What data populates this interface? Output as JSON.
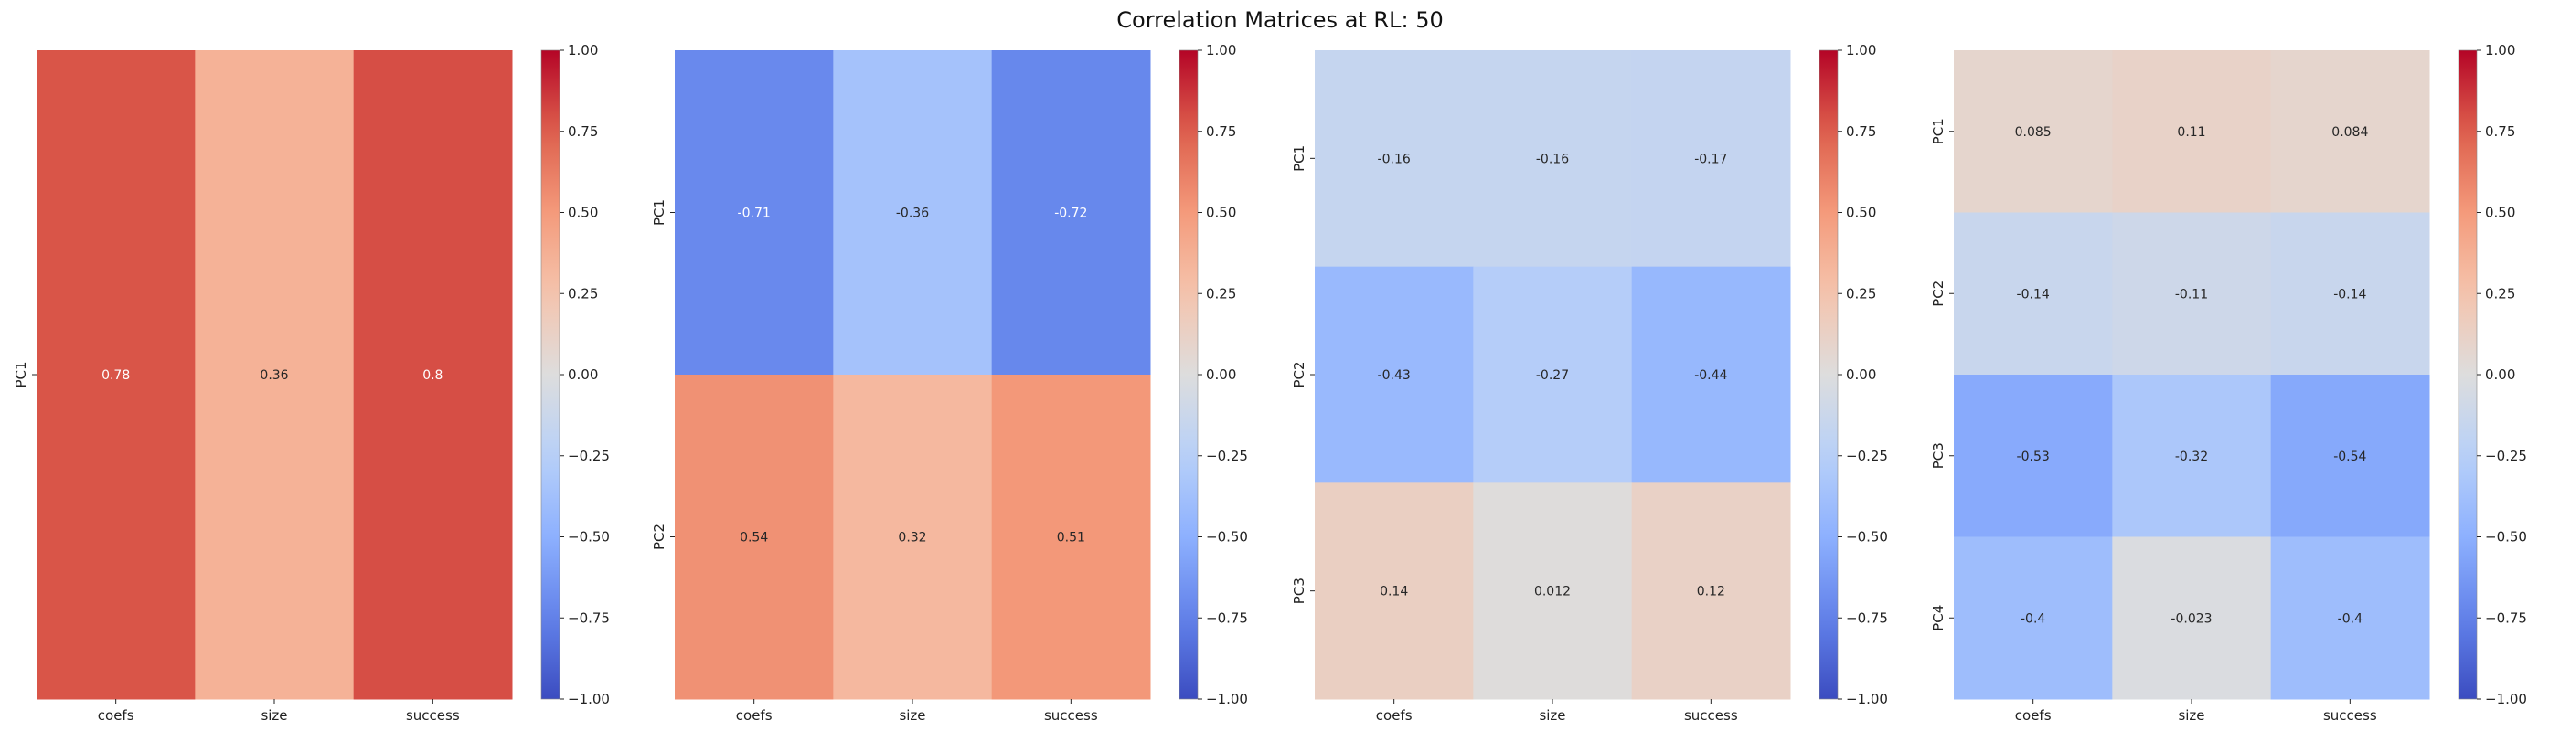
{
  "title": "Correlation Matrices at RL: 50",
  "colormap": "coolwarm",
  "colors": {
    "low": "#3b4cc0",
    "mid": "#dddddd",
    "high": "#b40426"
  },
  "chart_data": [
    {
      "type": "heatmap",
      "x_categories": [
        "coefs",
        "size",
        "success"
      ],
      "y_categories": [
        "PC1"
      ],
      "values": [
        [
          0.78,
          0.36,
          0.8
        ]
      ],
      "labels": [
        [
          "0.78",
          "0.36",
          "0.8"
        ]
      ],
      "vmin": -1,
      "vmax": 1,
      "colorbar_ticks": [
        "1.00",
        "0.75",
        "0.50",
        "0.25",
        "0.00",
        "−0.25",
        "−0.50",
        "−0.75",
        "−1.00"
      ]
    },
    {
      "type": "heatmap",
      "x_categories": [
        "coefs",
        "size",
        "success"
      ],
      "y_categories": [
        "PC1",
        "PC2"
      ],
      "values": [
        [
          -0.71,
          -0.36,
          -0.72
        ],
        [
          0.54,
          0.32,
          0.51
        ]
      ],
      "labels": [
        [
          "-0.71",
          "-0.36",
          "-0.72"
        ],
        [
          "0.54",
          "0.32",
          "0.51"
        ]
      ],
      "vmin": -1,
      "vmax": 1,
      "colorbar_ticks": [
        "1.00",
        "0.75",
        "0.50",
        "0.25",
        "0.00",
        "−0.25",
        "−0.50",
        "−0.75",
        "−1.00"
      ]
    },
    {
      "type": "heatmap",
      "x_categories": [
        "coefs",
        "size",
        "success"
      ],
      "y_categories": [
        "PC1",
        "PC2",
        "PC3"
      ],
      "values": [
        [
          -0.16,
          -0.16,
          -0.17
        ],
        [
          -0.43,
          -0.27,
          -0.44
        ],
        [
          0.14,
          0.012,
          0.12
        ]
      ],
      "labels": [
        [
          "-0.16",
          "-0.16",
          "-0.17"
        ],
        [
          "-0.43",
          "-0.27",
          "-0.44"
        ],
        [
          "0.14",
          "0.012",
          "0.12"
        ]
      ],
      "vmin": -1,
      "vmax": 1,
      "colorbar_ticks": [
        "1.00",
        "0.75",
        "0.50",
        "0.25",
        "0.00",
        "−0.25",
        "−0.50",
        "−0.75",
        "−1.00"
      ]
    },
    {
      "type": "heatmap",
      "x_categories": [
        "coefs",
        "size",
        "success"
      ],
      "y_categories": [
        "PC1",
        "PC2",
        "PC3",
        "PC4"
      ],
      "values": [
        [
          0.085,
          0.11,
          0.084
        ],
        [
          -0.14,
          -0.11,
          -0.14
        ],
        [
          -0.53,
          -0.32,
          -0.54
        ],
        [
          -0.4,
          -0.023,
          -0.4
        ]
      ],
      "labels": [
        [
          "0.085",
          "0.11",
          "0.084"
        ],
        [
          "-0.14",
          "-0.11",
          "-0.14"
        ],
        [
          "-0.53",
          "-0.32",
          "-0.54"
        ],
        [
          "-0.4",
          "-0.023",
          "-0.4"
        ]
      ],
      "vmin": -1,
      "vmax": 1,
      "colorbar_ticks": [
        "1.00",
        "0.75",
        "0.50",
        "0.25",
        "0.00",
        "−0.25",
        "−0.50",
        "−0.75",
        "−1.00"
      ]
    }
  ]
}
